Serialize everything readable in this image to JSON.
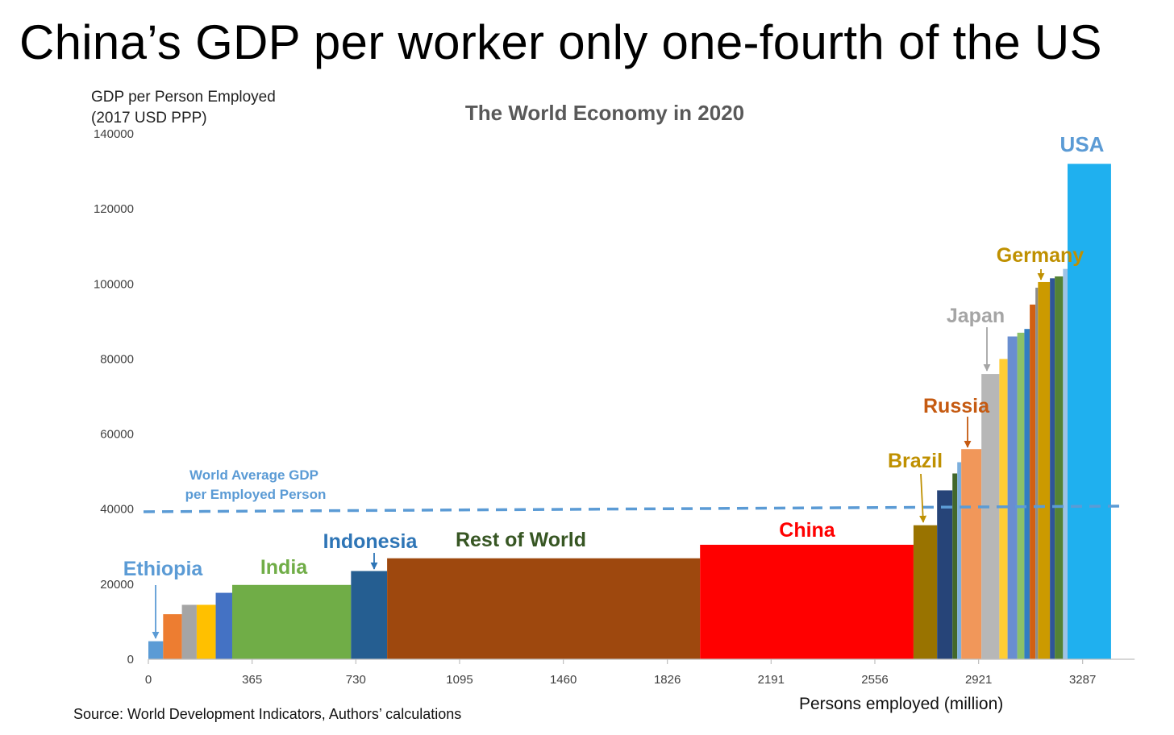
{
  "headline": "China’s GDP per worker only one-fourth of the US",
  "source": "Source: World Development Indicators, Authors’ calculations",
  "chart_data": {
    "type": "bar",
    "variable_width": true,
    "title": "The World Economy in 2020",
    "ylabel_lines": [
      "GDP per Person Employed",
      "(2017 USD PPP)"
    ],
    "xlabel": "Persons employed (million)",
    "xlim": [
      0,
      3470
    ],
    "ylim": [
      0,
      140000
    ],
    "x_ticks": [
      "0",
      "365",
      "730",
      "1095",
      "1460",
      "1826",
      "2191",
      "2556",
      "2921",
      "3287"
    ],
    "x_tick_values": [
      0,
      365,
      730,
      1095,
      1460,
      1826,
      2191,
      2556,
      2921,
      3287
    ],
    "y_ticks": [
      "0",
      "20000",
      "40000",
      "60000",
      "80000",
      "100000",
      "120000",
      "140000"
    ],
    "y_tick_values": [
      0,
      20000,
      40000,
      60000,
      80000,
      100000,
      120000,
      140000
    ],
    "bars": [
      {
        "label": "Ethiopia",
        "x0": 0,
        "x1": 52,
        "value": 4800,
        "color": "#5b9bd5"
      },
      {
        "label": "",
        "x0": 52,
        "x1": 118,
        "value": 12000,
        "color": "#ed7d31"
      },
      {
        "label": "",
        "x0": 118,
        "x1": 170,
        "value": 14500,
        "color": "#a5a5a5"
      },
      {
        "label": "",
        "x0": 170,
        "x1": 237,
        "value": 14500,
        "color": "#ffc000"
      },
      {
        "label": "",
        "x0": 237,
        "x1": 295,
        "value": 17700,
        "color": "#4472c4"
      },
      {
        "label": "India",
        "x0": 295,
        "x1": 713,
        "value": 19800,
        "color": "#70ad47"
      },
      {
        "label": "Indonesia",
        "x0": 713,
        "x1": 840,
        "value": 23500,
        "color": "#255e91"
      },
      {
        "label": "Rest of World",
        "x0": 840,
        "x1": 1941,
        "value": 26900,
        "color": "#9e480e"
      },
      {
        "label": "China",
        "x0": 1941,
        "x1": 2692,
        "value": 30500,
        "color": "#ff0000"
      },
      {
        "label": "Brazil",
        "x0": 2692,
        "x1": 2775,
        "value": 35700,
        "color": "#997300"
      },
      {
        "label": "",
        "x0": 2775,
        "x1": 2829,
        "value": 45000,
        "color": "#264478"
      },
      {
        "label": "",
        "x0": 2829,
        "x1": 2846,
        "value": 49500,
        "color": "#43682b"
      },
      {
        "label": "",
        "x0": 2846,
        "x1": 2860,
        "value": 52500,
        "color": "#7cafdd"
      },
      {
        "label": "Russia",
        "x0": 2860,
        "x1": 2931,
        "value": 56000,
        "color": "#f1975a"
      },
      {
        "label": "Japan",
        "x0": 2931,
        "x1": 2994,
        "value": 76000,
        "color": "#b7b7b7"
      },
      {
        "label": "",
        "x0": 2994,
        "x1": 3023,
        "value": 80000,
        "color": "#ffcd33"
      },
      {
        "label": "",
        "x0": 3023,
        "x1": 3057,
        "value": 86000,
        "color": "#698ed0"
      },
      {
        "label": "",
        "x0": 3057,
        "x1": 3082,
        "value": 87000,
        "color": "#8cc168"
      },
      {
        "label": "",
        "x0": 3082,
        "x1": 3101,
        "value": 88000,
        "color": "#327dc2"
      },
      {
        "label": "",
        "x0": 3101,
        "x1": 3121,
        "value": 94500,
        "color": "#d26012"
      },
      {
        "label": "",
        "x0": 3121,
        "x1": 3130,
        "value": 99000,
        "color": "#8c8c8c"
      },
      {
        "label": "Germany",
        "x0": 3130,
        "x1": 3172,
        "value": 100500,
        "color": "#cc9a00"
      },
      {
        "label": "",
        "x0": 3172,
        "x1": 3189,
        "value": 101500,
        "color": "#2f5597"
      },
      {
        "label": "",
        "x0": 3189,
        "x1": 3218,
        "value": 102000,
        "color": "#548235"
      },
      {
        "label": "",
        "x0": 3218,
        "x1": 3234,
        "value": 104000,
        "color": "#9dc3e6"
      },
      {
        "label": "USA",
        "x0": 3234,
        "x1": 3387,
        "value": 132000,
        "color": "#1fb0ef"
      }
    ],
    "world_average": {
      "value": 39500,
      "label_lines": [
        "World Average GDP",
        "per Employed Person"
      ],
      "color": "#5b9bd5"
    },
    "annotations": [
      {
        "text": "Ethiopia",
        "color": "#5b9bd5",
        "arrow": true
      },
      {
        "text": "India",
        "color": "#70ad47",
        "arrow": false
      },
      {
        "text": "Indonesia",
        "color": "#2e75b6",
        "arrow": true
      },
      {
        "text": "Rest of World",
        "color": "#375623",
        "arrow": false
      },
      {
        "text": "China",
        "color": "#ff0000",
        "arrow": false
      },
      {
        "text": "Brazil",
        "color": "#bf9000",
        "arrow": true
      },
      {
        "text": "Russia",
        "color": "#c55a11",
        "arrow": true
      },
      {
        "text": "Japan",
        "color": "#a5a5a5",
        "arrow": true
      },
      {
        "text": "Germany",
        "color": "#bf9000",
        "arrow": true
      },
      {
        "text": "USA",
        "color": "#5b9bd5",
        "arrow": false
      }
    ]
  }
}
